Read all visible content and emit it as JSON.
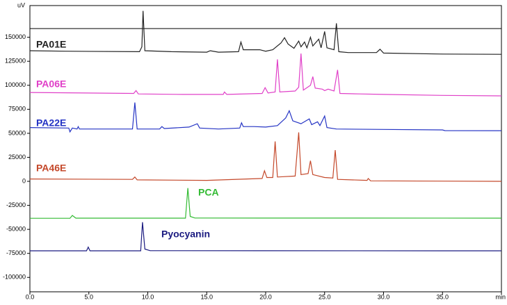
{
  "chart_data": {
    "type": "line",
    "x_label": "min",
    "y_label": "uV",
    "xlim": [
      0,
      40
    ],
    "ylim": [
      -115000,
      183000
    ],
    "xticks": [
      {
        "value": 0,
        "label": "0.0"
      },
      {
        "value": 5,
        "label": "5.0"
      },
      {
        "value": 10,
        "label": "10.0"
      },
      {
        "value": 15,
        "label": "15.0"
      },
      {
        "value": 20,
        "label": "20.0"
      },
      {
        "value": 25,
        "label": "25.0"
      },
      {
        "value": 30,
        "label": "30.0"
      },
      {
        "value": 35,
        "label": "35.0"
      },
      {
        "value": 40,
        "label": "min"
      }
    ],
    "yticks": [
      -100000,
      -75000,
      -50000,
      -25000,
      0,
      25000,
      50000,
      75000,
      100000,
      125000,
      150000
    ],
    "reference_line": 159000,
    "series": [
      {
        "name": "PA01E",
        "color": "#222222",
        "x": [
          0,
          3,
          9.3,
          9.5,
          9.6,
          9.75,
          12,
          15,
          15.3,
          16,
          17.7,
          17.9,
          18.1,
          19.5,
          20,
          20.6,
          21.3,
          21.6,
          21.9,
          22.4,
          22.8,
          23.0,
          23.3,
          23.5,
          23.8,
          24.0,
          24.5,
          24.7,
          25.0,
          25.2,
          25.8,
          26.0,
          26.2,
          27,
          29.4,
          29.7,
          30,
          35,
          40
        ],
        "values": [
          136000,
          135500,
          135000,
          140000,
          177500,
          136000,
          135000,
          134500,
          136000,
          134500,
          135000,
          145000,
          137000,
          137000,
          135500,
          137000,
          144000,
          149500,
          143000,
          138500,
          146000,
          140000,
          145000,
          139000,
          150000,
          141000,
          148000,
          139000,
          156000,
          139000,
          137000,
          164500,
          135000,
          134000,
          134000,
          137500,
          133500,
          132500,
          132200
        ]
      },
      {
        "name": "PA06E",
        "color": "#e040c8",
        "x": [
          0,
          8.8,
          9.0,
          9.2,
          13,
          16.4,
          16.5,
          16.7,
          19.7,
          19.95,
          20.2,
          20.8,
          21.0,
          21.2,
          22.5,
          22.8,
          23.0,
          23.2,
          23.8,
          24.0,
          24.2,
          24.8,
          25.0,
          25.3,
          25.8,
          26.1,
          26.3,
          28,
          30,
          35,
          40
        ],
        "values": [
          92500,
          91500,
          94500,
          91000,
          90500,
          90500,
          93000,
          90500,
          91500,
          97500,
          92000,
          93000,
          127000,
          93000,
          94000,
          98000,
          133000,
          95000,
          100000,
          109000,
          97000,
          96000,
          94500,
          96000,
          94000,
          116000,
          91500,
          91000,
          90500,
          89500,
          89000
        ]
      },
      {
        "name": "PA22E",
        "color": "#2433c4",
        "x": [
          0,
          3.3,
          3.4,
          3.6,
          4.0,
          4.1,
          4.2,
          8.7,
          8.9,
          9.1,
          11.0,
          11.2,
          11.4,
          13.5,
          14.2,
          14.4,
          16,
          17.8,
          17.95,
          18.1,
          19,
          20,
          21,
          21.7,
          22.0,
          22.3,
          23,
          23.7,
          23.9,
          24.4,
          24.6,
          25.0,
          25.2,
          26,
          30,
          35,
          35.2,
          40
        ],
        "values": [
          56000,
          55500,
          51500,
          55500,
          54500,
          57000,
          54500,
          54500,
          82000,
          54500,
          54500,
          57000,
          55000,
          56500,
          60000,
          55500,
          54500,
          55500,
          61000,
          57000,
          57000,
          56500,
          58000,
          66000,
          73500,
          63000,
          60000,
          65000,
          59000,
          62000,
          58000,
          68000,
          56000,
          54500,
          54000,
          53500,
          52800,
          52700
        ]
      },
      {
        "name": "PA46E",
        "color": "#c4482a",
        "x": [
          0,
          8.7,
          8.9,
          9.1,
          15,
          19.7,
          19.9,
          20.1,
          20.6,
          20.8,
          21.0,
          22.5,
          22.8,
          23.0,
          23.6,
          23.8,
          24.0,
          25,
          25.7,
          25.9,
          26.1,
          28.6,
          28.7,
          28.9,
          40
        ],
        "values": [
          2500,
          2000,
          4500,
          1500,
          1000,
          3000,
          11000,
          4000,
          4000,
          41500,
          4500,
          5500,
          51000,
          7000,
          8000,
          21500,
          7000,
          4000,
          3500,
          32500,
          2000,
          1000,
          3000,
          500,
          0
        ]
      },
      {
        "name": "PCA",
        "color": "#33bb33",
        "x": [
          0,
          3.4,
          3.6,
          3.9,
          13.2,
          13.4,
          13.6,
          14,
          40
        ],
        "values": [
          -38500,
          -38500,
          -35500,
          -38300,
          -38300,
          -7000,
          -36500,
          -38200,
          -38300
        ]
      },
      {
        "name": "Pyocyanin",
        "color": "#1a1a80",
        "x": [
          0,
          4.8,
          4.95,
          5.1,
          9.4,
          9.55,
          9.75,
          10.2,
          40
        ],
        "values": [
          -72300,
          -72300,
          -68500,
          -72300,
          -72300,
          -42500,
          -70500,
          -72200,
          -72300
        ]
      }
    ]
  }
}
